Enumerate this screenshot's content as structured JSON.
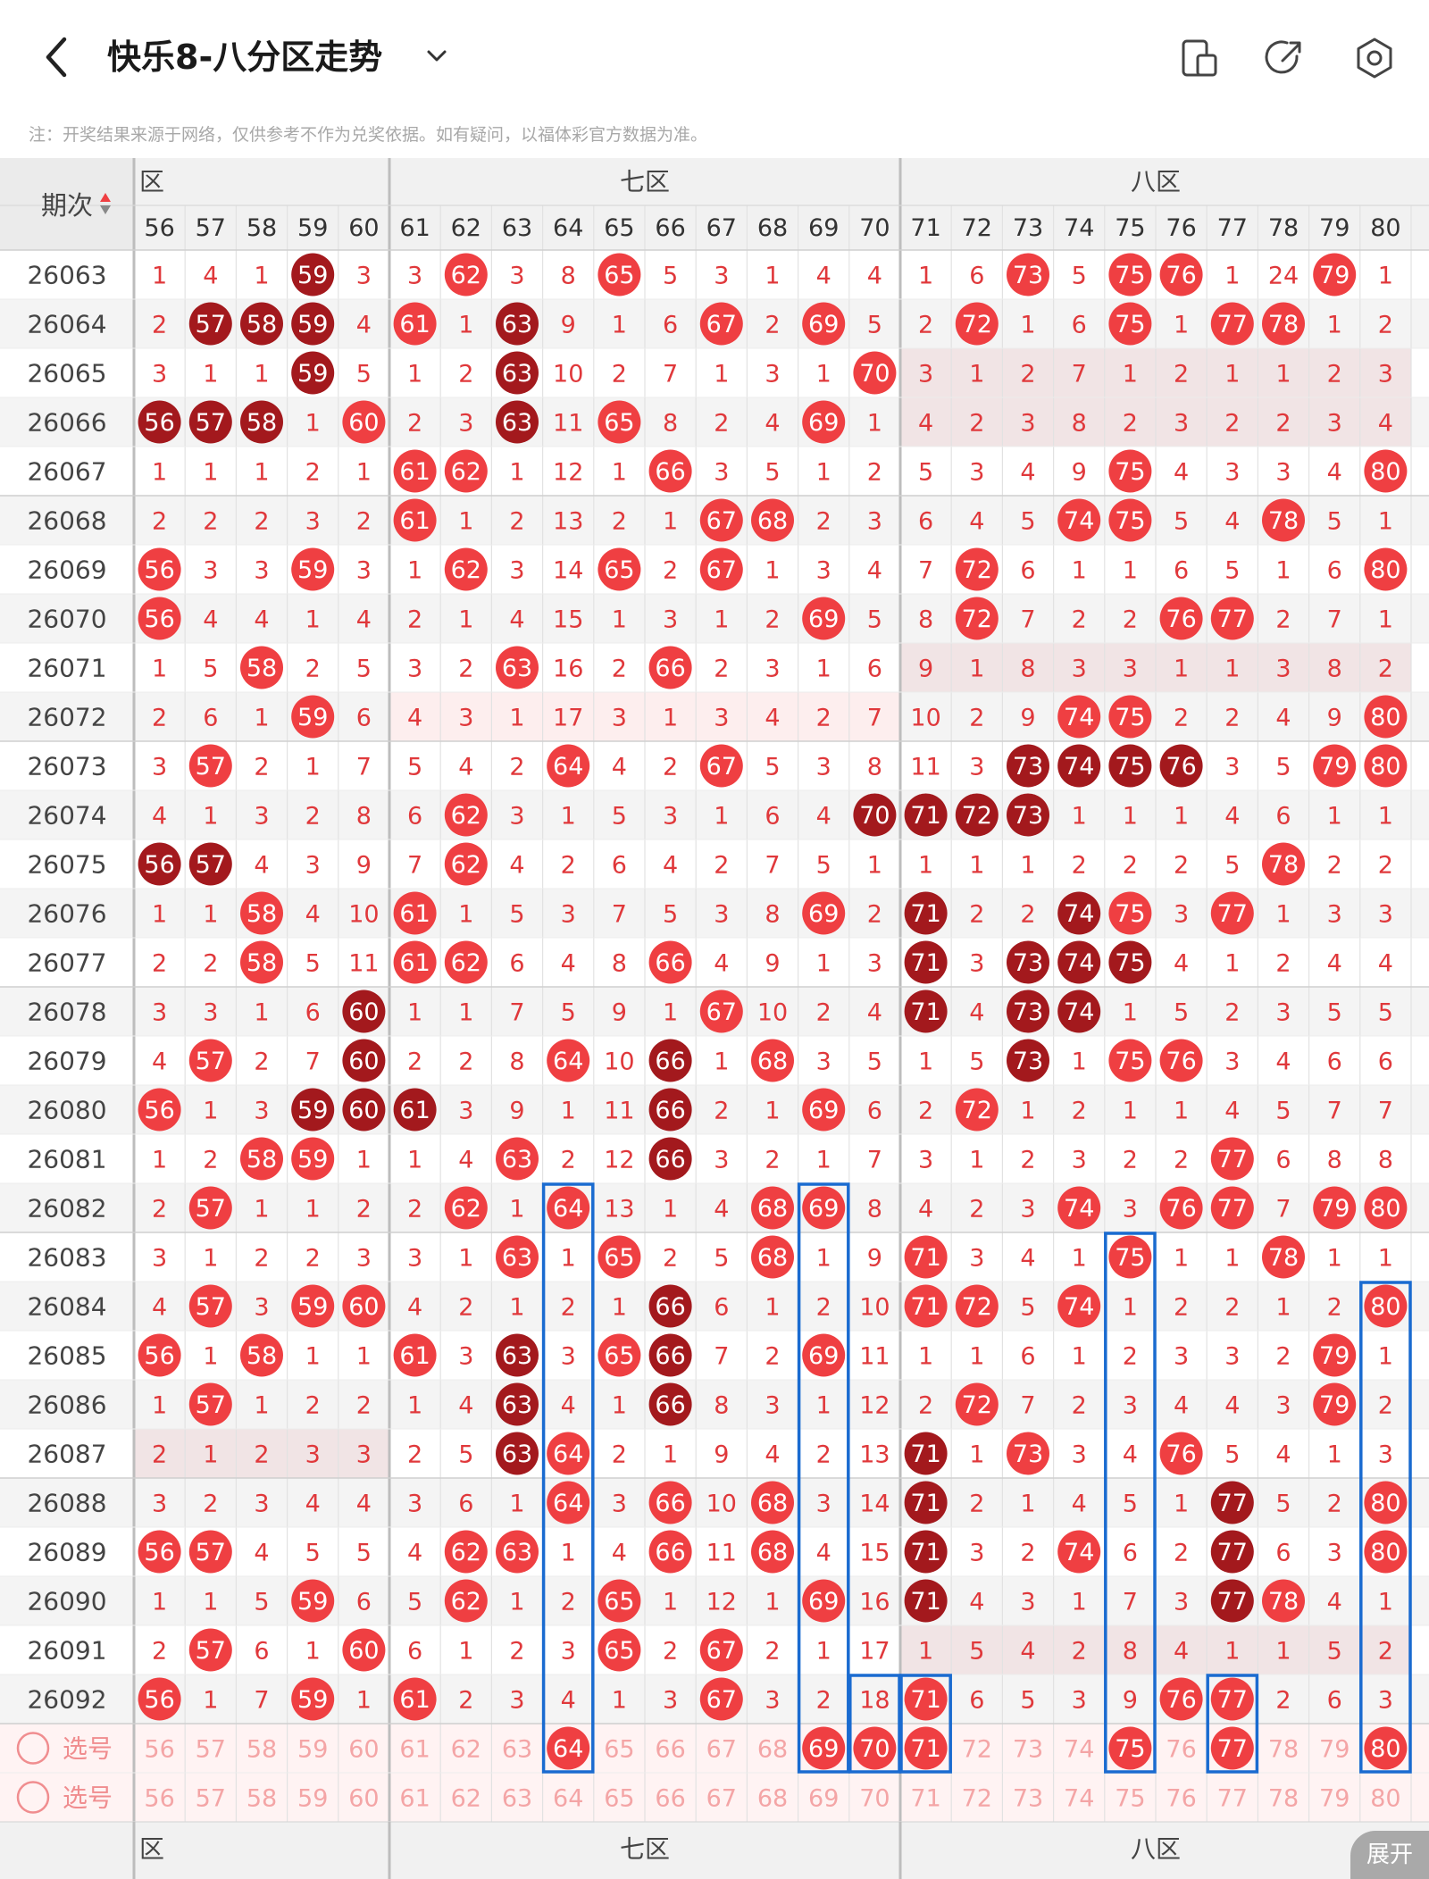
{
  "header": {
    "title": "快乐8-八分区走势",
    "notice": "注：开奖结果来源于网络，仅供参考不作为兑奖依据。如有疑问，以福体彩官方数据为准。",
    "icons": [
      "back-icon",
      "chevron-down-icon",
      "device-icon",
      "share-icon",
      "settings-icon"
    ]
  },
  "table": {
    "period_label": "期次",
    "zones": [
      {
        "label": "六区",
        "visible": "区",
        "numbers": [
          56,
          57,
          58,
          59,
          60
        ]
      },
      {
        "label": "七区",
        "visible": "七区",
        "numbers": [
          61,
          62,
          63,
          64,
          65,
          66,
          67,
          68,
          69,
          70
        ]
      },
      {
        "label": "八区",
        "visible": "八区",
        "numbers": [
          71,
          72,
          73,
          74,
          75,
          76,
          77,
          78,
          79,
          80
        ]
      }
    ],
    "columns": [
      56,
      57,
      58,
      59,
      60,
      61,
      62,
      63,
      64,
      65,
      66,
      67,
      68,
      69,
      70,
      71,
      72,
      73,
      74,
      75,
      76,
      77,
      78,
      79,
      80
    ],
    "rows": [
      {
        "period": "26063",
        "cells": [
          "1",
          "4",
          "1",
          "59",
          "3",
          "3",
          "62",
          "3",
          "8",
          "65",
          "5",
          "3",
          "1",
          "4",
          "4",
          "1",
          "6",
          "73",
          "5",
          "75",
          "76",
          "1",
          "24",
          "79",
          "1"
        ],
        "dark": [
          "59"
        ]
      },
      {
        "period": "26064",
        "cells": [
          "2",
          "57",
          "58",
          "59",
          "4",
          "61",
          "1",
          "63",
          "9",
          "1",
          "6",
          "67",
          "2",
          "69",
          "5",
          "2",
          "72",
          "1",
          "6",
          "75",
          "1",
          "77",
          "78",
          "1",
          "2"
        ],
        "dark": [
          "57",
          "58",
          "59",
          "63"
        ]
      },
      {
        "period": "26065",
        "cells": [
          "3",
          "1",
          "1",
          "59",
          "5",
          "1",
          "2",
          "63",
          "10",
          "2",
          "7",
          "1",
          "3",
          "1",
          "70",
          "3",
          "1",
          "2",
          "7",
          "1",
          "2",
          "1",
          "1",
          "2",
          "3"
        ],
        "dark": [
          "59",
          "63"
        ]
      },
      {
        "period": "26066",
        "cells": [
          "56",
          "57",
          "58",
          "1",
          "60",
          "2",
          "3",
          "63",
          "11",
          "65",
          "8",
          "2",
          "4",
          "69",
          "1",
          "4",
          "2",
          "3",
          "8",
          "2",
          "3",
          "2",
          "2",
          "3",
          "4"
        ],
        "dark": [
          "56",
          "57",
          "58",
          "63"
        ]
      },
      {
        "period": "26067",
        "cells": [
          "1",
          "1",
          "1",
          "2",
          "1",
          "61",
          "62",
          "1",
          "12",
          "1",
          "66",
          "3",
          "5",
          "1",
          "2",
          "5",
          "3",
          "4",
          "9",
          "75",
          "4",
          "3",
          "3",
          "4",
          "80"
        ],
        "dark": []
      },
      {
        "period": "26068",
        "cells": [
          "2",
          "2",
          "2",
          "3",
          "2",
          "61",
          "1",
          "2",
          "13",
          "2",
          "1",
          "67",
          "68",
          "2",
          "3",
          "6",
          "4",
          "5",
          "74",
          "75",
          "5",
          "4",
          "78",
          "5",
          "1"
        ],
        "dark": []
      },
      {
        "period": "26069",
        "cells": [
          "56",
          "3",
          "3",
          "59",
          "3",
          "1",
          "62",
          "3",
          "14",
          "65",
          "2",
          "67",
          "1",
          "3",
          "4",
          "7",
          "72",
          "6",
          "1",
          "1",
          "6",
          "5",
          "1",
          "6",
          "80"
        ],
        "dark": []
      },
      {
        "period": "26070",
        "cells": [
          "56",
          "4",
          "4",
          "1",
          "4",
          "2",
          "1",
          "4",
          "15",
          "1",
          "3",
          "1",
          "2",
          "69",
          "5",
          "8",
          "72",
          "7",
          "2",
          "2",
          "76",
          "77",
          "2",
          "7",
          "1"
        ],
        "dark": []
      },
      {
        "period": "26071",
        "cells": [
          "1",
          "5",
          "58",
          "2",
          "5",
          "3",
          "2",
          "63",
          "16",
          "2",
          "66",
          "2",
          "3",
          "1",
          "6",
          "9",
          "1",
          "8",
          "3",
          "3",
          "1",
          "1",
          "3",
          "8",
          "2"
        ],
        "dark": []
      },
      {
        "period": "26072",
        "cells": [
          "2",
          "6",
          "1",
          "59",
          "6",
          "4",
          "3",
          "1",
          "17",
          "3",
          "1",
          "3",
          "4",
          "2",
          "7",
          "10",
          "2",
          "9",
          "74",
          "75",
          "2",
          "2",
          "4",
          "9",
          "80"
        ],
        "dark": []
      },
      {
        "period": "26073",
        "cells": [
          "3",
          "57",
          "2",
          "1",
          "7",
          "5",
          "4",
          "2",
          "64",
          "4",
          "2",
          "67",
          "5",
          "3",
          "8",
          "11",
          "3",
          "73",
          "74",
          "75",
          "76",
          "3",
          "5",
          "79",
          "80"
        ],
        "dark": [
          "73",
          "74",
          "75",
          "76"
        ]
      },
      {
        "period": "26074",
        "cells": [
          "4",
          "1",
          "3",
          "2",
          "8",
          "6",
          "62",
          "3",
          "1",
          "5",
          "3",
          "1",
          "6",
          "4",
          "70",
          "71",
          "72",
          "73",
          "1",
          "1",
          "1",
          "4",
          "6",
          "1",
          "1"
        ],
        "dark": [
          "70",
          "71",
          "72",
          "73"
        ]
      },
      {
        "period": "26075",
        "cells": [
          "56",
          "57",
          "4",
          "3",
          "9",
          "7",
          "62",
          "4",
          "2",
          "6",
          "4",
          "2",
          "7",
          "5",
          "1",
          "1",
          "1",
          "1",
          "2",
          "2",
          "2",
          "5",
          "78",
          "2",
          "2"
        ],
        "dark": [
          "56",
          "57"
        ]
      },
      {
        "period": "26076",
        "cells": [
          "1",
          "1",
          "58",
          "4",
          "10",
          "61",
          "1",
          "5",
          "3",
          "7",
          "5",
          "3",
          "8",
          "69",
          "2",
          "71",
          "2",
          "2",
          "74",
          "75",
          "3",
          "77",
          "1",
          "3",
          "3"
        ],
        "dark": [
          "71",
          "74"
        ]
      },
      {
        "period": "26077",
        "cells": [
          "2",
          "2",
          "58",
          "5",
          "11",
          "61",
          "62",
          "6",
          "4",
          "8",
          "66",
          "4",
          "9",
          "1",
          "3",
          "71",
          "3",
          "73",
          "74",
          "75",
          "4",
          "1",
          "2",
          "4",
          "4"
        ],
        "dark": [
          "71",
          "73",
          "74",
          "75"
        ]
      },
      {
        "period": "26078",
        "cells": [
          "3",
          "3",
          "1",
          "6",
          "60",
          "1",
          "1",
          "7",
          "5",
          "9",
          "1",
          "67",
          "10",
          "2",
          "4",
          "71",
          "4",
          "73",
          "74",
          "1",
          "5",
          "2",
          "3",
          "5",
          "5"
        ],
        "dark": [
          "60",
          "71",
          "73",
          "74"
        ]
      },
      {
        "period": "26079",
        "cells": [
          "4",
          "57",
          "2",
          "7",
          "60",
          "2",
          "2",
          "8",
          "64",
          "10",
          "66",
          "1",
          "68",
          "3",
          "5",
          "1",
          "5",
          "73",
          "1",
          "75",
          "76",
          "3",
          "4",
          "6",
          "6"
        ],
        "dark": [
          "60",
          "66",
          "73"
        ]
      },
      {
        "period": "26080",
        "cells": [
          "56",
          "1",
          "3",
          "59",
          "60",
          "61",
          "3",
          "9",
          "1",
          "11",
          "66",
          "2",
          "1",
          "69",
          "6",
          "2",
          "72",
          "1",
          "2",
          "1",
          "1",
          "4",
          "5",
          "7",
          "7"
        ],
        "dark": [
          "59",
          "60",
          "61",
          "66"
        ]
      },
      {
        "period": "26081",
        "cells": [
          "1",
          "2",
          "58",
          "59",
          "1",
          "1",
          "4",
          "63",
          "2",
          "12",
          "66",
          "3",
          "2",
          "1",
          "7",
          "3",
          "1",
          "2",
          "3",
          "2",
          "2",
          "77",
          "6",
          "8",
          "8"
        ],
        "dark": [
          "66"
        ]
      },
      {
        "period": "26082",
        "cells": [
          "2",
          "57",
          "1",
          "1",
          "2",
          "2",
          "62",
          "1",
          "64",
          "13",
          "1",
          "4",
          "68",
          "69",
          "8",
          "4",
          "2",
          "3",
          "74",
          "3",
          "76",
          "77",
          "7",
          "79",
          "80"
        ],
        "dark": []
      },
      {
        "period": "26083",
        "cells": [
          "3",
          "1",
          "2",
          "2",
          "3",
          "3",
          "1",
          "63",
          "1",
          "65",
          "2",
          "5",
          "68",
          "1",
          "9",
          "71",
          "3",
          "4",
          "1",
          "75",
          "1",
          "1",
          "78",
          "1",
          "1"
        ],
        "dark": []
      },
      {
        "period": "26084",
        "cells": [
          "4",
          "57",
          "3",
          "59",
          "60",
          "4",
          "2",
          "1",
          "2",
          "1",
          "66",
          "6",
          "1",
          "2",
          "10",
          "71",
          "72",
          "5",
          "74",
          "1",
          "2",
          "2",
          "1",
          "2",
          "80"
        ],
        "dark": [
          "66"
        ]
      },
      {
        "period": "26085",
        "cells": [
          "56",
          "1",
          "58",
          "1",
          "1",
          "61",
          "3",
          "63",
          "3",
          "65",
          "66",
          "7",
          "2",
          "69",
          "11",
          "1",
          "1",
          "6",
          "1",
          "2",
          "3",
          "3",
          "2",
          "79",
          "1"
        ],
        "dark": [
          "63",
          "66"
        ]
      },
      {
        "period": "26086",
        "cells": [
          "1",
          "57",
          "1",
          "2",
          "2",
          "1",
          "4",
          "63",
          "4",
          "1",
          "66",
          "8",
          "3",
          "1",
          "12",
          "2",
          "72",
          "7",
          "2",
          "3",
          "4",
          "4",
          "3",
          "79",
          "2"
        ],
        "dark": [
          "63",
          "66"
        ]
      },
      {
        "period": "26087",
        "cells": [
          "2",
          "1",
          "2",
          "3",
          "3",
          "2",
          "5",
          "63",
          "64",
          "2",
          "1",
          "9",
          "4",
          "2",
          "13",
          "71",
          "1",
          "73",
          "3",
          "4",
          "76",
          "5",
          "4",
          "1",
          "3"
        ],
        "dark": [
          "63",
          "71"
        ]
      },
      {
        "period": "26088",
        "cells": [
          "3",
          "2",
          "3",
          "4",
          "4",
          "3",
          "6",
          "1",
          "64",
          "3",
          "66",
          "10",
          "68",
          "3",
          "14",
          "71",
          "2",
          "1",
          "4",
          "5",
          "1",
          "77",
          "5",
          "2",
          "80"
        ],
        "dark": [
          "71",
          "77"
        ]
      },
      {
        "period": "26089",
        "cells": [
          "56",
          "57",
          "4",
          "5",
          "5",
          "4",
          "62",
          "63",
          "1",
          "4",
          "66",
          "11",
          "68",
          "4",
          "15",
          "71",
          "3",
          "2",
          "74",
          "6",
          "2",
          "77",
          "6",
          "3",
          "80"
        ],
        "dark": [
          "71",
          "77"
        ]
      },
      {
        "period": "26090",
        "cells": [
          "1",
          "1",
          "5",
          "59",
          "6",
          "5",
          "62",
          "1",
          "2",
          "65",
          "1",
          "12",
          "1",
          "69",
          "16",
          "71",
          "4",
          "3",
          "1",
          "7",
          "3",
          "77",
          "78",
          "4",
          "1"
        ],
        "dark": [
          "71",
          "77"
        ]
      },
      {
        "period": "26091",
        "cells": [
          "2",
          "57",
          "6",
          "1",
          "60",
          "6",
          "1",
          "2",
          "3",
          "65",
          "2",
          "67",
          "2",
          "1",
          "17",
          "1",
          "5",
          "4",
          "2",
          "8",
          "4",
          "1",
          "1",
          "5",
          "2"
        ],
        "dark": []
      },
      {
        "period": "26092",
        "cells": [
          "56",
          "1",
          "7",
          "59",
          "1",
          "61",
          "2",
          "3",
          "4",
          "1",
          "3",
          "67",
          "3",
          "2",
          "18",
          "71",
          "6",
          "5",
          "3",
          "9",
          "76",
          "77",
          "2",
          "6",
          "3"
        ],
        "dark": []
      }
    ],
    "select_rows": [
      {
        "label": "选号",
        "picked": [
          "64",
          "69",
          "70",
          "71",
          "75",
          "77",
          "80"
        ]
      },
      {
        "label": "选号",
        "picked": []
      }
    ],
    "bottom_zone_labels": [
      "区",
      "七区",
      "八区"
    ],
    "expand_label": "展开",
    "colors": {
      "red": "#ef3f42",
      "dark": "#a3191d",
      "box": "#1a6bd0",
      "shade_row": "#f4f4f4",
      "shade_band": "#f1e4e5",
      "pink_band": "#fdeeee"
    }
  }
}
